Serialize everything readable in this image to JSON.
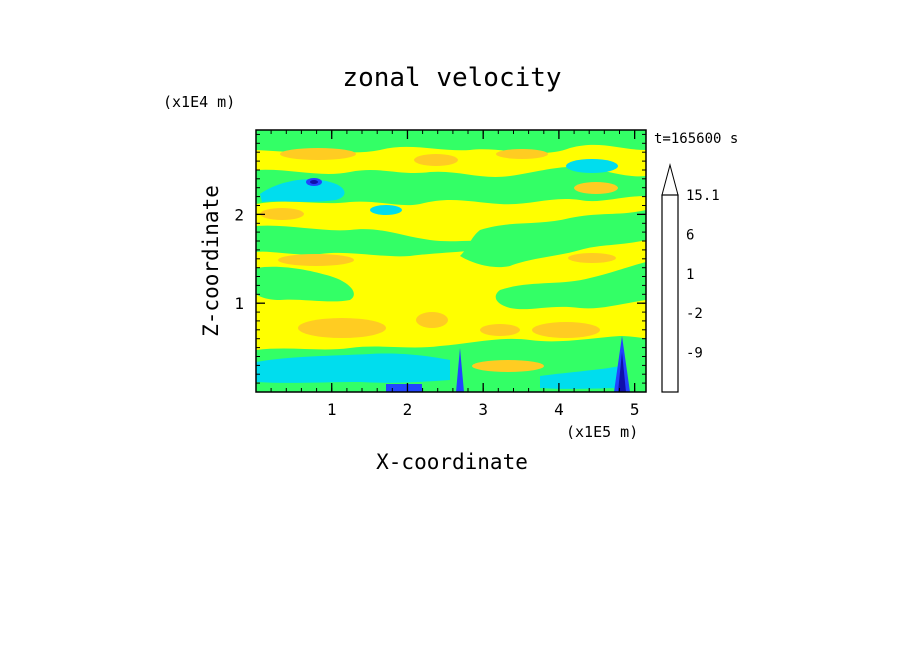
{
  "chart_data": {
    "type": "heatmap",
    "title": "zonal velocity",
    "xlabel": "X-coordinate",
    "ylabel": "Z-coordinate",
    "x_unit": "(x1E5 m)",
    "y_unit": "(x1E4 m)",
    "time_label": "t=165600 s",
    "xlim": [
      0,
      5.15
    ],
    "ylim": [
      0,
      2.95
    ],
    "x_ticks": [
      1,
      2,
      3,
      4,
      5
    ],
    "y_ticks": [
      1,
      2
    ],
    "colorbar": {
      "levels": [
        -15,
        -12,
        -9,
        -6,
        -4,
        -2,
        -1,
        0,
        1,
        2,
        4,
        6,
        9,
        12,
        15.1
      ],
      "labels": [
        "15.1",
        "6",
        "1",
        "-2",
        "-9"
      ],
      "label_values": [
        15.1,
        6,
        1,
        -2,
        -9
      ],
      "colors": [
        "#ee22aa",
        "#aa1199",
        "#66009a",
        "#1010aa",
        "#2244ff",
        "#00ddee",
        "#33ff66",
        "#ffff00",
        "#ffcc22",
        "#ffaa00",
        "#ff7700",
        "#ee4400",
        "#ee2222",
        "#ee5555",
        "#ffbbbb"
      ],
      "over_color": "#ffffff"
    },
    "colors": {
      "background_field": "#ffff00",
      "green": "#33ff66",
      "orange": "#ffcc22",
      "cyan": "#00ddee",
      "blue": "#2244ff"
    }
  }
}
